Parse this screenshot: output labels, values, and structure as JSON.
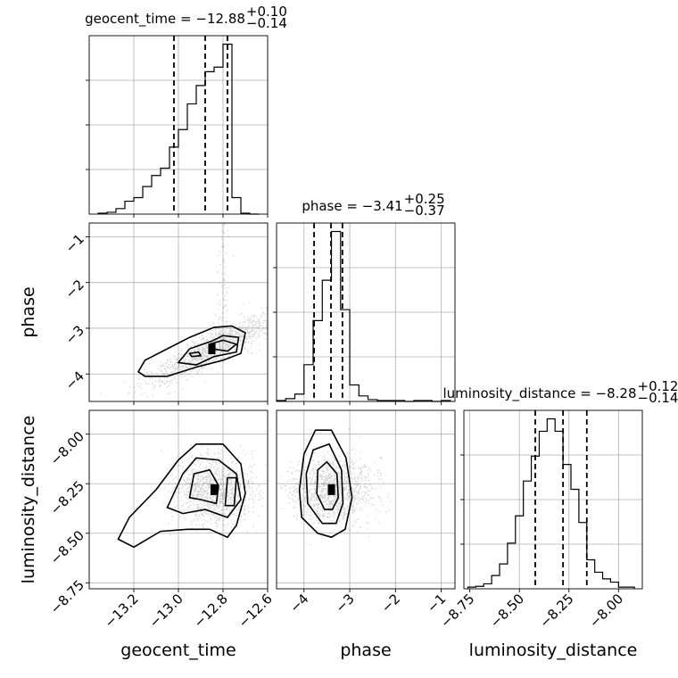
{
  "chart_data": {
    "type": "corner",
    "parameters": [
      "geocent_time",
      "phase",
      "luminosity_distance"
    ],
    "grid": true,
    "diagonal": [
      {
        "param": "geocent_time",
        "title_name": "geocent_time",
        "median": "-12.88",
        "plus": "+0.10",
        "minus": "−0.14",
        "quantiles": [
          -13.02,
          -12.88,
          -12.78
        ],
        "xlim": [
          -13.4,
          -12.6
        ],
        "bin_edges": [
          -13.36,
          -13.32,
          -13.28,
          -13.24,
          -13.2,
          -13.16,
          -13.12,
          -13.08,
          -13.04,
          -13.0,
          -12.96,
          -12.92,
          -12.88,
          -12.84,
          -12.8,
          -12.76,
          -12.72,
          -12.68,
          -12.64
        ],
        "counts": [
          1,
          2,
          6,
          14,
          18,
          30,
          42,
          50,
          73,
          92,
          120,
          140,
          155,
          160,
          185,
          18,
          1,
          0
        ]
      },
      {
        "param": "phase",
        "title_name": "phase",
        "median": "-3.41",
        "plus": "+0.25",
        "minus": "−0.37",
        "quantiles": [
          -3.78,
          -3.41,
          -3.16
        ],
        "xlim": [
          -4.6,
          -0.7
        ],
        "bin_edges": [
          -4.6,
          -4.4,
          -4.2,
          -4.0,
          -3.8,
          -3.6,
          -3.4,
          -3.2,
          -3.0,
          -2.8,
          -2.6,
          -2.4,
          -2.2,
          -2.0,
          -1.8,
          -1.6,
          -1.4,
          -1.2,
          -1.0,
          -0.8
        ],
        "counts": [
          1,
          3,
          8,
          40,
          88,
          132,
          185,
          100,
          18,
          6,
          2,
          1,
          1,
          1,
          0,
          1,
          1,
          0,
          1
        ]
      },
      {
        "param": "luminosity_distance",
        "title_name": "luminosity_distance",
        "median": "-8.28",
        "plus": "+0.12",
        "minus": "−0.14",
        "quantiles": [
          -8.42,
          -8.28,
          -8.16
        ],
        "xlim": [
          -8.78,
          -7.88
        ],
        "bin_edges": [
          -8.76,
          -8.72,
          -8.68,
          -8.64,
          -8.6,
          -8.56,
          -8.52,
          -8.48,
          -8.44,
          -8.4,
          -8.36,
          -8.32,
          -8.28,
          -8.24,
          -8.2,
          -8.16,
          -8.12,
          -8.08,
          -8.04,
          -8.0,
          -7.96,
          -7.92
        ],
        "counts": [
          2,
          3,
          6,
          16,
          30,
          55,
          88,
          130,
          160,
          190,
          205,
          190,
          150,
          120,
          80,
          35,
          20,
          12,
          8,
          2,
          2
        ]
      }
    ],
    "axes": {
      "geocent_time": {
        "range": [
          -13.4,
          -12.6
        ],
        "ticks": [
          -13.2,
          -13.0,
          -12.8,
          -12.6
        ],
        "tick_labels": [
          "−13.2",
          "−13.0",
          "−12.8",
          "−12.6"
        ]
      },
      "phase": {
        "range": [
          -4.6,
          -0.7
        ],
        "ticks": [
          -4,
          -3,
          -2,
          -1
        ],
        "tick_labels": [
          "−4",
          "−3",
          "−2",
          "−1"
        ]
      },
      "luminosity_distance": {
        "range": [
          -8.78,
          -7.88
        ],
        "ticks": [
          -8.75,
          -8.5,
          -8.25,
          -8.0
        ],
        "tick_labels": [
          "−8.75",
          "−8.50",
          "−8.25",
          "−8.00"
        ]
      }
    },
    "pairs": [
      {
        "x": "geocent_time",
        "y": "phase",
        "center": [
          -12.85,
          -3.45
        ],
        "contours": [
          [
            [
              -13.18,
              -3.95
            ],
            [
              -13.15,
              -4.05
            ],
            [
              -13.05,
              -4.05
            ],
            [
              -12.92,
              -3.85
            ],
            [
              -12.8,
              -3.7
            ],
            [
              -12.72,
              -3.55
            ],
            [
              -12.7,
              -3.1
            ],
            [
              -12.76,
              -2.95
            ],
            [
              -12.84,
              -2.98
            ],
            [
              -12.95,
              -3.2
            ],
            [
              -13.05,
              -3.45
            ],
            [
              -13.15,
              -3.7
            ],
            [
              -13.18,
              -3.95
            ]
          ],
          [
            [
              -13.0,
              -3.75
            ],
            [
              -12.92,
              -3.8
            ],
            [
              -12.84,
              -3.62
            ],
            [
              -12.74,
              -3.52
            ],
            [
              -12.73,
              -3.2
            ],
            [
              -12.8,
              -3.16
            ],
            [
              -12.85,
              -3.28
            ],
            [
              -12.95,
              -3.45
            ],
            [
              -13.0,
              -3.75
            ]
          ],
          [
            [
              -12.85,
              -3.45
            ],
            [
              -12.78,
              -3.5
            ],
            [
              -12.74,
              -3.35
            ],
            [
              -12.8,
              -3.26
            ],
            [
              -12.86,
              -3.35
            ],
            [
              -12.85,
              -3.45
            ]
          ],
          [
            [
              -12.94,
              -3.62
            ],
            [
              -12.9,
              -3.6
            ],
            [
              -12.91,
              -3.52
            ],
            [
              -12.95,
              -3.55
            ],
            [
              -12.94,
              -3.62
            ]
          ]
        ]
      },
      {
        "x": "geocent_time",
        "y": "luminosity_distance",
        "center": [
          -12.84,
          -8.28
        ],
        "contours": [
          [
            [
              -13.27,
              -8.53
            ],
            [
              -13.22,
              -8.42
            ],
            [
              -13.1,
              -8.28
            ],
            [
              -13.0,
              -8.13
            ],
            [
              -12.92,
              -8.05
            ],
            [
              -12.8,
              -8.05
            ],
            [
              -12.72,
              -8.15
            ],
            [
              -12.7,
              -8.3
            ],
            [
              -12.74,
              -8.46
            ],
            [
              -12.78,
              -8.52
            ],
            [
              -12.86,
              -8.48
            ],
            [
              -12.96,
              -8.48
            ],
            [
              -13.08,
              -8.49
            ],
            [
              -13.2,
              -8.57
            ],
            [
              -13.27,
              -8.53
            ]
          ],
          [
            [
              -13.05,
              -8.37
            ],
            [
              -12.98,
              -8.2
            ],
            [
              -12.92,
              -8.12
            ],
            [
              -12.82,
              -8.13
            ],
            [
              -12.74,
              -8.2
            ],
            [
              -12.72,
              -8.33
            ],
            [
              -12.78,
              -8.42
            ],
            [
              -12.88,
              -8.38
            ],
            [
              -12.98,
              -8.4
            ],
            [
              -13.05,
              -8.37
            ]
          ],
          [
            [
              -12.95,
              -8.32
            ],
            [
              -12.93,
              -8.2
            ],
            [
              -12.86,
              -8.18
            ],
            [
              -12.82,
              -8.26
            ],
            [
              -12.83,
              -8.35
            ],
            [
              -12.9,
              -8.33
            ],
            [
              -12.95,
              -8.32
            ]
          ],
          [
            [
              -12.79,
              -8.36
            ],
            [
              -12.75,
              -8.36
            ],
            [
              -12.74,
              -8.22
            ],
            [
              -12.78,
              -8.22
            ],
            [
              -12.79,
              -8.36
            ]
          ]
        ]
      },
      {
        "x": "phase",
        "y": "luminosity_distance",
        "center": [
          -3.4,
          -8.28
        ],
        "contours": [
          [
            [
              -3.7,
              -8.5
            ],
            [
              -4.05,
              -8.42
            ],
            [
              -4.1,
              -8.28
            ],
            [
              -4.0,
              -8.1
            ],
            [
              -3.75,
              -7.98
            ],
            [
              -3.4,
              -7.98
            ],
            [
              -3.08,
              -8.12
            ],
            [
              -2.95,
              -8.32
            ],
            [
              -3.1,
              -8.48
            ],
            [
              -3.4,
              -8.52
            ],
            [
              -3.7,
              -8.5
            ]
          ],
          [
            [
              -3.6,
              -8.45
            ],
            [
              -3.92,
              -8.35
            ],
            [
              -3.95,
              -8.2
            ],
            [
              -3.8,
              -8.08
            ],
            [
              -3.45,
              -8.05
            ],
            [
              -3.18,
              -8.18
            ],
            [
              -3.15,
              -8.35
            ],
            [
              -3.3,
              -8.45
            ],
            [
              -3.6,
              -8.45
            ]
          ],
          [
            [
              -3.55,
              -8.38
            ],
            [
              -3.72,
              -8.3
            ],
            [
              -3.7,
              -8.18
            ],
            [
              -3.5,
              -8.14
            ],
            [
              -3.28,
              -8.2
            ],
            [
              -3.25,
              -8.32
            ],
            [
              -3.38,
              -8.38
            ],
            [
              -3.55,
              -8.38
            ]
          ]
        ]
      }
    ]
  }
}
